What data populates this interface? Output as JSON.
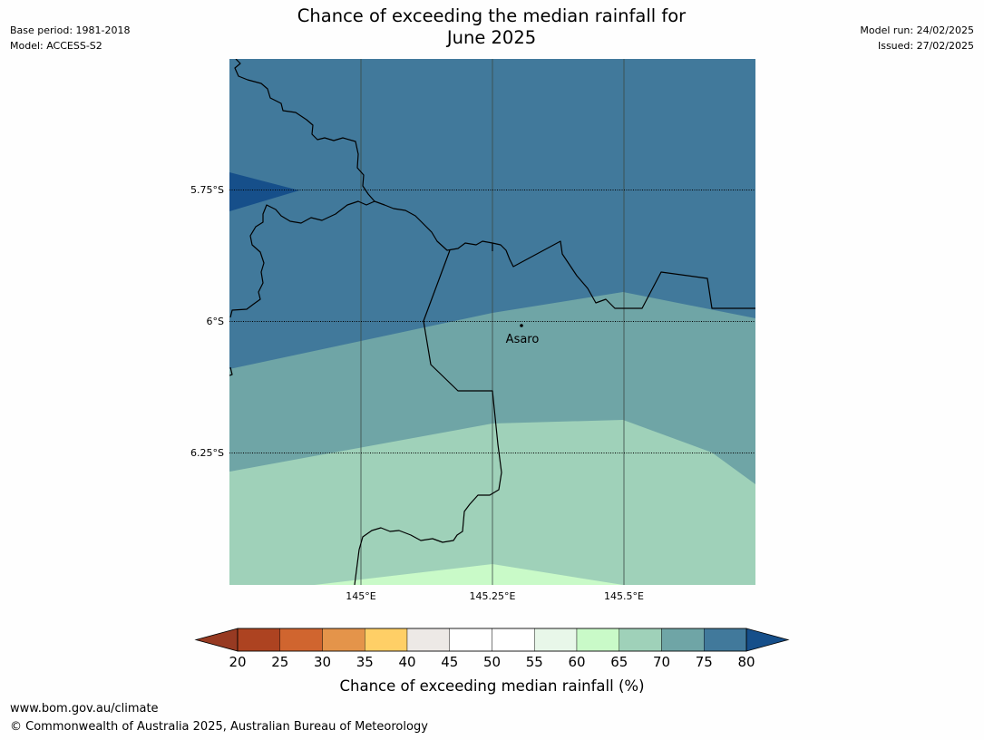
{
  "header": {
    "title_line1": "Chance of exceeding the median rainfall for",
    "title_line2": "June 2025",
    "base_period": "Base period: 1981-2018",
    "model": "Model: ACCESS-S2",
    "model_run": "Model run: 24/02/2025",
    "issued": "Issued: 27/02/2025"
  },
  "map": {
    "latitude_labels": [
      "5.75°S",
      "6°S",
      "6.25°S"
    ],
    "longitude_labels": [
      "145°E",
      "145.25°E",
      "145.5°E"
    ],
    "place": {
      "name": "Asaro",
      "lat": -6.01,
      "lon": 145.28
    },
    "extent": {
      "lon": [
        144.75,
        145.75
      ],
      "lat": [
        -6.5,
        -5.5
      ]
    },
    "bands": [
      {
        "range": "75-80",
        "color": "#41799b"
      },
      {
        "range": "80+",
        "color": "#164f8a"
      },
      {
        "range": "70-75",
        "color": "#6fa5a6"
      },
      {
        "range": "65-70",
        "color": "#9fd1b9"
      },
      {
        "range": "60-65",
        "color": "#c9fac8"
      }
    ]
  },
  "colorbar": {
    "ticks": [
      "20",
      "25",
      "30",
      "35",
      "40",
      "45",
      "50",
      "55",
      "60",
      "65",
      "70",
      "75",
      "80"
    ],
    "colors": [
      "#ad4321",
      "#d0652f",
      "#e4944a",
      "#ffcf66",
      "#ede9e6",
      "#ffffff",
      "#ffffff",
      "#e8f7e9",
      "#c9fac8",
      "#9fd1b9",
      "#6fa5a6",
      "#41799b"
    ],
    "under_color": "#973a22",
    "over_color": "#164f8a",
    "label": "Chance of exceeding median rainfall (%)"
  },
  "footer": {
    "url": "www.bom.gov.au/climate",
    "copyright": "© Commonwealth of Australia 2025, Australian Bureau of Meteorology"
  }
}
